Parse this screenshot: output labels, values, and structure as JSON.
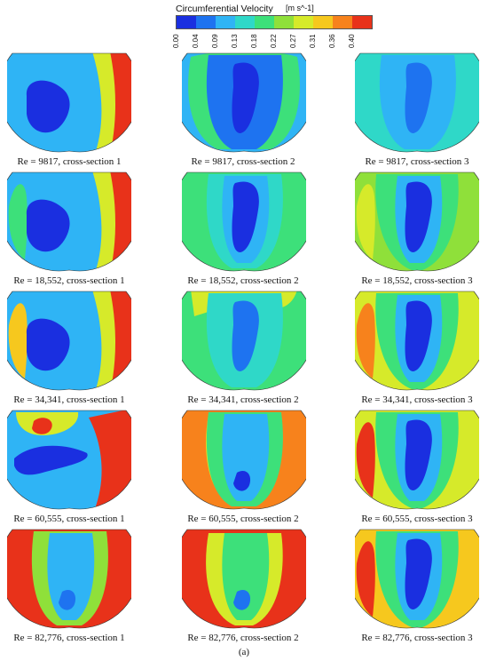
{
  "legend": {
    "title": "Circumferential Velocity",
    "units": "[m s^-1]",
    "ticks": [
      "0.00",
      "0.04",
      "0.09",
      "0.13",
      "0.18",
      "0.22",
      "0.27",
      "0.31",
      "0.36",
      "0.40"
    ],
    "colors": [
      "#1a2fe0",
      "#1e73f0",
      "#2fb4f5",
      "#2fd8c8",
      "#3de07a",
      "#8fe03a",
      "#d6ea2a",
      "#f6c81e",
      "#f7821c",
      "#e8321a"
    ]
  },
  "panels": [
    {
      "caption": "Re = 9817, cross-section 1",
      "base": "#2fb4f5",
      "blobs": [
        {
          "c": "#1a2fe0",
          "shape": "left"
        },
        {
          "c": "#d6ea2a",
          "shape": "rightstrip"
        },
        {
          "c": "#e8321a",
          "shape": "rightedge"
        }
      ]
    },
    {
      "caption": "Re = 9817, cross-section 2",
      "base": "#2fb4f5",
      "blobs": [
        {
          "c": "#3de07a",
          "shape": "ring"
        },
        {
          "c": "#1e73f0",
          "shape": "centerwide"
        },
        {
          "c": "#1a2fe0",
          "shape": "center"
        }
      ]
    },
    {
      "caption": "Re = 9817, cross-section 3",
      "base": "#2fd8c8",
      "blobs": [
        {
          "c": "#2fb4f5",
          "shape": "centerwide"
        },
        {
          "c": "#1e73f0",
          "shape": "center"
        }
      ]
    },
    {
      "caption": "Re = 18,552, cross-section 1",
      "base": "#2fb4f5",
      "blobs": [
        {
          "c": "#3de07a",
          "shape": "leftedge"
        },
        {
          "c": "#1a2fe0",
          "shape": "left"
        },
        {
          "c": "#d6ea2a",
          "shape": "rightstrip"
        },
        {
          "c": "#e8321a",
          "shape": "rightedge"
        }
      ]
    },
    {
      "caption": "Re = 18,552, cross-section 2",
      "base": "#3de07a",
      "blobs": [
        {
          "c": "#2fd8c8",
          "shape": "centerwide"
        },
        {
          "c": "#2fb4f5",
          "shape": "centermid"
        },
        {
          "c": "#1a2fe0",
          "shape": "center"
        }
      ]
    },
    {
      "caption": "Re = 18,552, cross-section 3",
      "base": "#8fe03a",
      "blobs": [
        {
          "c": "#d6ea2a",
          "shape": "leftedge"
        },
        {
          "c": "#3de07a",
          "shape": "vshape"
        },
        {
          "c": "#2fb4f5",
          "shape": "centermid"
        },
        {
          "c": "#1a2fe0",
          "shape": "center"
        }
      ]
    },
    {
      "caption": "Re = 34,341, cross-section 1",
      "base": "#2fb4f5",
      "blobs": [
        {
          "c": "#f6c81e",
          "shape": "leftedge"
        },
        {
          "c": "#1a2fe0",
          "shape": "left"
        },
        {
          "c": "#d6ea2a",
          "shape": "rightstrip"
        },
        {
          "c": "#e8321a",
          "shape": "rightedge"
        }
      ]
    },
    {
      "caption": "Re = 34,341, cross-section 2",
      "base": "#3de07a",
      "blobs": [
        {
          "c": "#d6ea2a",
          "shape": "top"
        },
        {
          "c": "#2fd8c8",
          "shape": "centerwide"
        },
        {
          "c": "#1e73f0",
          "shape": "center"
        }
      ]
    },
    {
      "caption": "Re = 34,341, cross-section 3",
      "base": "#d6ea2a",
      "blobs": [
        {
          "c": "#f7821c",
          "shape": "leftedge"
        },
        {
          "c": "#3de07a",
          "shape": "vshape"
        },
        {
          "c": "#2fb4f5",
          "shape": "centermid"
        },
        {
          "c": "#1a2fe0",
          "shape": "center"
        }
      ]
    },
    {
      "caption": "Re = 60,555, cross-section 1",
      "base": "#2fb4f5",
      "blobs": [
        {
          "c": "#d6ea2a",
          "shape": "topleft"
        },
        {
          "c": "#e8321a",
          "shape": "dot"
        },
        {
          "c": "#1a2fe0",
          "shape": "band"
        },
        {
          "c": "#e8321a",
          "shape": "rightbig"
        }
      ]
    },
    {
      "caption": "Re = 60,555, cross-section 2",
      "base": "#f7821c",
      "blobs": [
        {
          "c": "#d6ea2a",
          "shape": "ringin"
        },
        {
          "c": "#3de07a",
          "shape": "centerwide"
        },
        {
          "c": "#2fb4f5",
          "shape": "centermid"
        },
        {
          "c": "#1a2fe0",
          "shape": "dotlow"
        }
      ]
    },
    {
      "caption": "Re = 60,555, cross-section 3",
      "base": "#d6ea2a",
      "blobs": [
        {
          "c": "#e8321a",
          "shape": "leftedge"
        },
        {
          "c": "#3de07a",
          "shape": "vshape"
        },
        {
          "c": "#2fb4f5",
          "shape": "centermid"
        },
        {
          "c": "#1a2fe0",
          "shape": "center"
        }
      ]
    },
    {
      "caption": "Re = 82,776, cross-section 1",
      "base": "#e8321a",
      "blobs": [
        {
          "c": "#8fe03a",
          "shape": "centerwide"
        },
        {
          "c": "#2fb4f5",
          "shape": "centermid"
        },
        {
          "c": "#1e73f0",
          "shape": "dotlow"
        }
      ]
    },
    {
      "caption": "Re = 82,776, cross-section 2",
      "base": "#e8321a",
      "blobs": [
        {
          "c": "#d6ea2a",
          "shape": "ringin"
        },
        {
          "c": "#3de07a",
          "shape": "centermid"
        },
        {
          "c": "#1e73f0",
          "shape": "dotlow"
        }
      ]
    },
    {
      "caption": "Re = 82,776, cross-section 3",
      "base": "#f6c81e",
      "blobs": [
        {
          "c": "#e8321a",
          "shape": "leftedge"
        },
        {
          "c": "#3de07a",
          "shape": "vshape"
        },
        {
          "c": "#2fb4f5",
          "shape": "centermid"
        },
        {
          "c": "#1a2fe0",
          "shape": "center"
        }
      ]
    }
  ],
  "figure_label": "(a)"
}
